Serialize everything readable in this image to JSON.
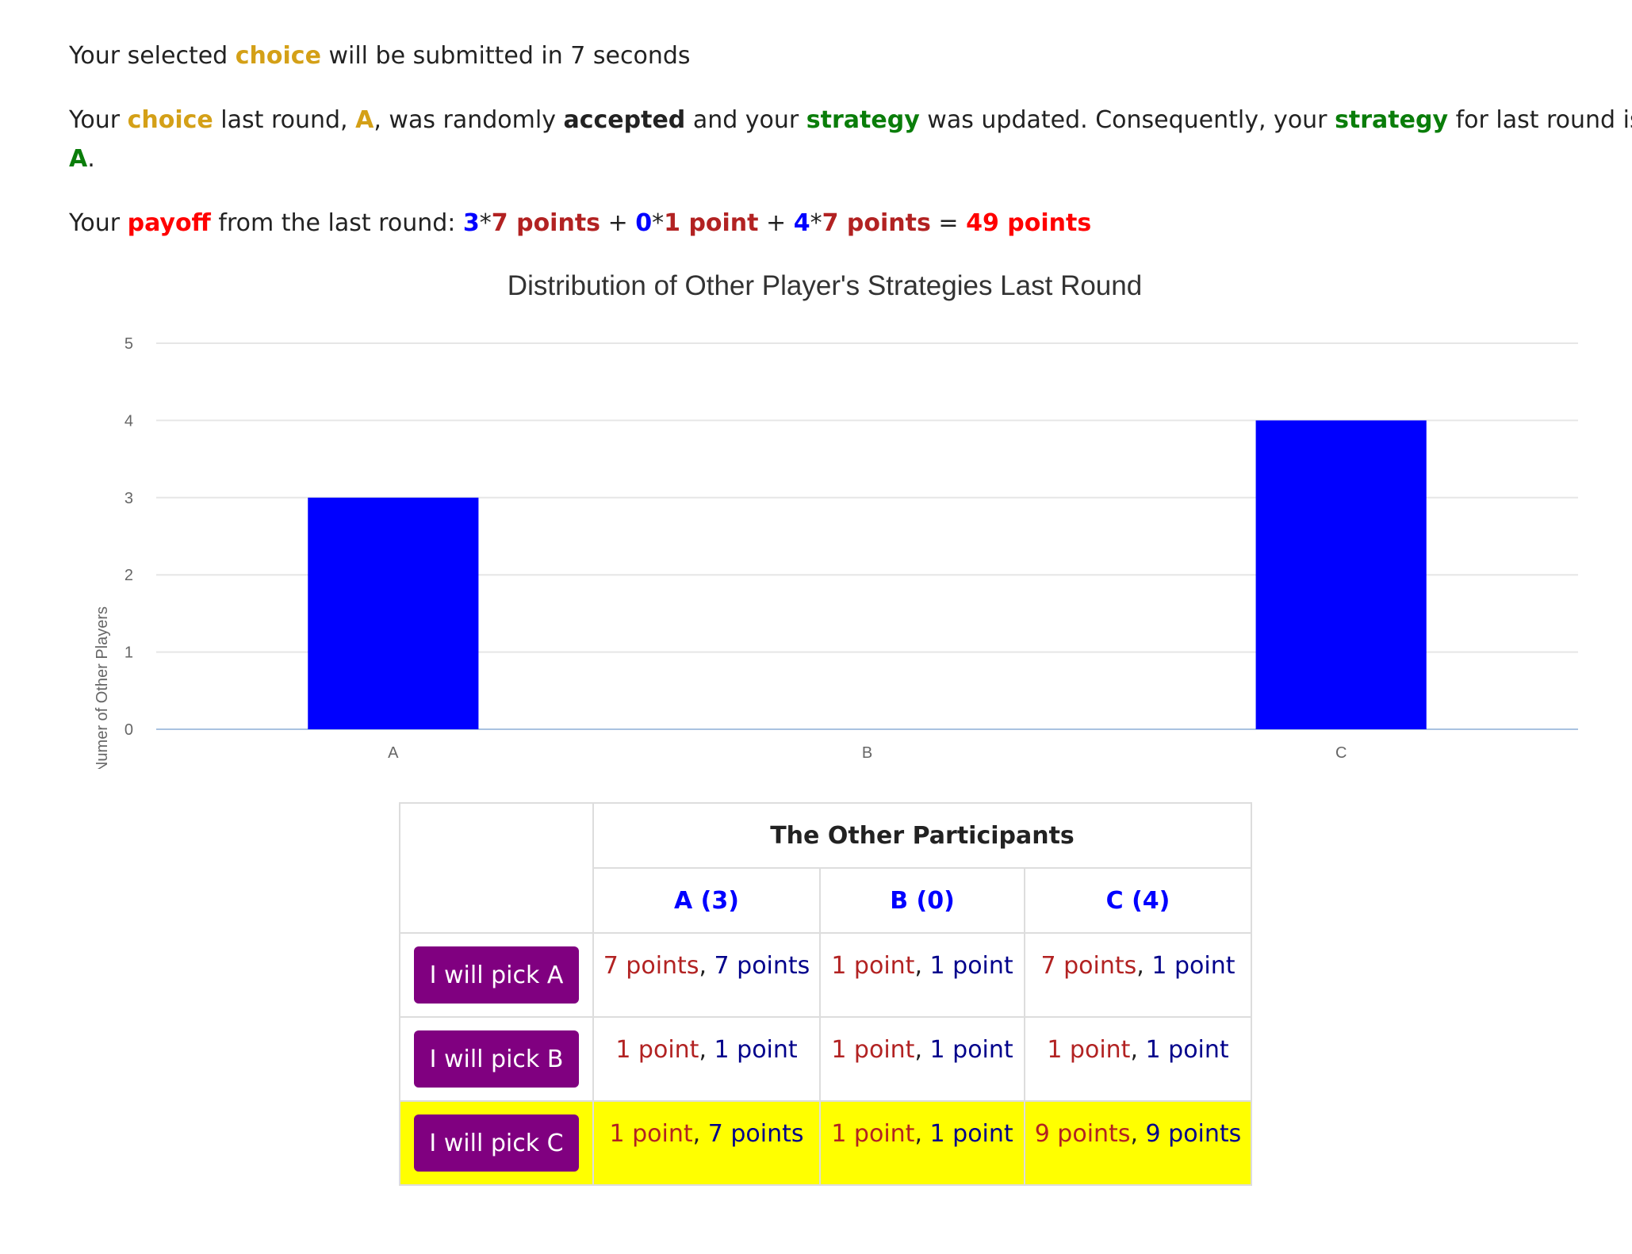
{
  "status": {
    "p1": "Your selected ",
    "choice_word": "choice",
    "p2": " will be submitted in 7 seconds"
  },
  "last_round": {
    "p1": "Your ",
    "choice_word": "choice",
    "p2": " last round, ",
    "choice_value": "A",
    "p3": ", was randomly ",
    "accepted": "accepted",
    "p4": " and your ",
    "strategy_word": "strategy",
    "p5": " was updated. Consequently, your ",
    "strategy_word2": "strategy",
    "p6": " for last round is",
    "strategy_value": "A",
    "p7": "."
  },
  "payoff": {
    "p1": "Your ",
    "payoff_word": "payoff",
    "p2": " from the last round: ",
    "t1_count": "3",
    "t1_mult": "*",
    "t1_points": "7 points",
    "plus1": " + ",
    "t2_count": "0",
    "t2_mult": "*",
    "t2_points": "1 point",
    "plus2": " + ",
    "t3_count": "4",
    "t3_mult": "*",
    "t3_points": "7 points",
    "equals": " = ",
    "total": "49 points"
  },
  "chart_data": {
    "type": "bar",
    "title": "Distribution of Other Player's Strategies Last Round",
    "xlabel": "",
    "ylabel": "Numer of Other Players",
    "categories": [
      "A",
      "B",
      "C"
    ],
    "values": [
      3,
      0,
      4
    ],
    "ylim": [
      0,
      5
    ],
    "yticks": [
      "0",
      "1",
      "2",
      "3",
      "4",
      "5"
    ],
    "bar_color": "#0000ff",
    "grid": true
  },
  "table": {
    "header_main": "The Other Participants",
    "columns": [
      "A (3)",
      "B (0)",
      "C (4)"
    ],
    "rows": [
      {
        "button": "I will pick A",
        "cells": [
          {
            "mine": "7 points",
            "sep": ", ",
            "theirs": "7 points"
          },
          {
            "mine": "1 point",
            "sep": ", ",
            "theirs": "1 point"
          },
          {
            "mine": "7 points",
            "sep": ", ",
            "theirs": "1 point"
          }
        ]
      },
      {
        "button": "I will pick B",
        "cells": [
          {
            "mine": "1 point",
            "sep": ", ",
            "theirs": "1 point"
          },
          {
            "mine": "1 point",
            "sep": ", ",
            "theirs": "1 point"
          },
          {
            "mine": "1 point",
            "sep": ", ",
            "theirs": "1 point"
          }
        ]
      },
      {
        "button": "I will pick C",
        "highlighted": true,
        "cells": [
          {
            "mine": "1 point",
            "sep": ", ",
            "theirs": "7 points"
          },
          {
            "mine": "1 point",
            "sep": ", ",
            "theirs": "1 point"
          },
          {
            "mine": "9 points",
            "sep": ", ",
            "theirs": "9 points"
          }
        ]
      }
    ]
  },
  "colors": {
    "highlight_row": "#ffff00",
    "button_bg": "#800080",
    "choice_gold": "#d4a017",
    "strategy_green": "#0a7d0a",
    "payoff_red": "#ff0000"
  }
}
